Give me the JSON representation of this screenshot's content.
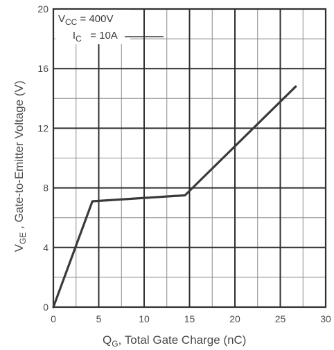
{
  "chart_data": {
    "type": "line",
    "title": "",
    "xlabel": {
      "main": "Q",
      "sub": "G",
      "rest": ", Total Gate Charge (nC)"
    },
    "ylabel": {
      "main": "V",
      "sub": "GE",
      "rest": " , Gate-to-Emitter Voltage (V)"
    },
    "xlim": [
      0,
      30
    ],
    "ylim": [
      0,
      20
    ],
    "x_ticks": [
      0,
      5,
      10,
      15,
      20,
      25,
      30
    ],
    "y_ticks": [
      0,
      4,
      8,
      12,
      16,
      20
    ],
    "minor_x_step": 2.5,
    "minor_y_step": 2,
    "grid": true,
    "annotations": {
      "vcc": {
        "main": "V",
        "sub": "CC",
        "rest": " = 400V"
      },
      "ic": {
        "main": "I",
        "sub": "C",
        "rest": "   = 10A"
      }
    },
    "series": [
      {
        "x": [
          0,
          4.3,
          14.5,
          26.7
        ],
        "y": [
          0,
          7.1,
          7.5,
          14.8
        ]
      }
    ],
    "colors": {
      "line": "#3a3a3a",
      "major_grid": "#2f2f2f",
      "minor_grid": "#8a8a8a",
      "text": "#4a4a4a"
    }
  }
}
